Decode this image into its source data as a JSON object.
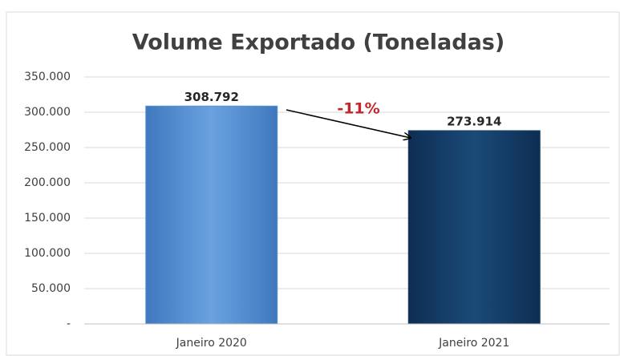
{
  "chart_data": {
    "type": "bar",
    "title": "Volume Exportado (Toneladas)",
    "categories": [
      "Janeiro 2020",
      "Janeiro 2021"
    ],
    "values": [
      308792,
      273914
    ],
    "value_labels": [
      "308.792",
      "273.914"
    ],
    "colors": [
      "#5b93d3",
      "#16406a"
    ],
    "annotation": "-11%",
    "ylim": [
      0,
      350000
    ],
    "yticks": [
      {
        "value": 0,
        "label": "-"
      },
      {
        "value": 50000,
        "label": "50.000"
      },
      {
        "value": 100000,
        "label": "100.000"
      },
      {
        "value": 150000,
        "label": "150.000"
      },
      {
        "value": 200000,
        "label": "200.000"
      },
      {
        "value": 250000,
        "label": "250.000"
      },
      {
        "value": 300000,
        "label": "300.000"
      },
      {
        "value": 350000,
        "label": "350.000"
      }
    ],
    "grid": true
  }
}
